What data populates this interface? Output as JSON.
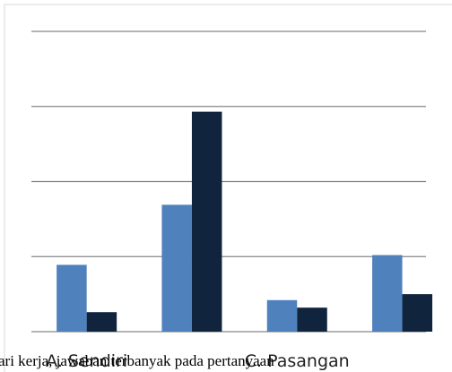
{
  "chart_data": {
    "type": "bar",
    "categories": [
      "A. Sendiri",
      null,
      "C. Pasangan",
      null
    ],
    "series": [
      {
        "color": "#4f81bd",
        "values": [
          0.89,
          1.69,
          0.42,
          1.02
        ]
      },
      {
        "color": "#10243e",
        "values": [
          0.26,
          2.93,
          0.32,
          0.5
        ]
      }
    ],
    "ylim": [
      0,
      4
    ],
    "yticks": [
      0,
      1,
      2,
      3,
      4
    ],
    "grid": true,
    "annotation": "ari kerja, jawaban terbanyak pada pertanyaan"
  }
}
